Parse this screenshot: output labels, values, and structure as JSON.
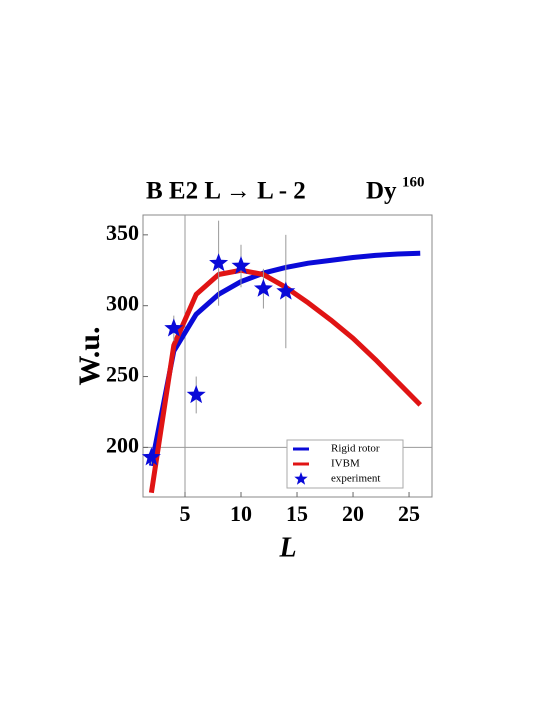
{
  "chart_data": {
    "type": "line",
    "title": "B E2 L → L - 2",
    "nucleus": "Dy",
    "mass_number": "160",
    "x_label": "L",
    "y_label": "W.u.",
    "xlim": [
      1.25,
      27.05
    ],
    "ylim": [
      165,
      364
    ],
    "xticks": [
      5,
      10,
      15,
      20,
      25
    ],
    "yticks": [
      200,
      250,
      300,
      350
    ],
    "axes_origin": [
      5,
      200
    ],
    "legend_position": "lower right",
    "series": [
      {
        "name": "Rigid rotor",
        "color": "#0a0ad8",
        "mode": "line",
        "x": [
          2,
          4,
          6,
          8,
          10,
          12,
          14,
          16,
          18,
          20,
          22,
          24,
          26
        ],
        "values": [
          187,
          268,
          294,
          308,
          317,
          323,
          327,
          330,
          332,
          334,
          335.5,
          336.5,
          337
        ]
      },
      {
        "name": "IVBM",
        "color": "#e01414",
        "mode": "line",
        "x": [
          2,
          4,
          6,
          8,
          10,
          12,
          14,
          16,
          18,
          20,
          22,
          24,
          26
        ],
        "values": [
          168,
          272,
          308,
          322,
          325,
          322,
          313,
          302,
          290,
          277,
          262,
          246,
          230
        ]
      },
      {
        "name": "experiment",
        "color": "#0a0ad8",
        "mode": "marker",
        "x": [
          2,
          4,
          6,
          8,
          10,
          12,
          14
        ],
        "values": [
          193,
          284,
          237,
          330,
          328,
          312,
          310
        ],
        "errors": [
          5,
          9,
          13,
          30,
          15,
          14,
          40
        ]
      }
    ]
  }
}
